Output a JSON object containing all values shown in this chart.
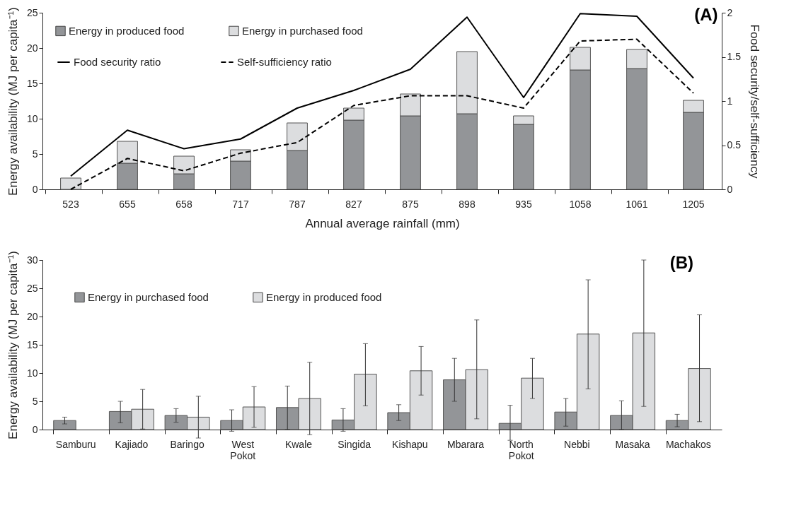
{
  "chart_data": [
    {
      "type": "bar",
      "title": "(A)",
      "stacked": true,
      "xlabel": "Annual average rainfall (mm)",
      "ylabel": "Energy availability (MJ per capita⁻¹)",
      "y2label": "Food security/self-sufficiency",
      "categories": [
        "523",
        "655",
        "658",
        "717",
        "787",
        "827",
        "875",
        "898",
        "935",
        "1058",
        "1061",
        "1205"
      ],
      "series": [
        {
          "name": "Energy in produced food",
          "color": "#939598",
          "values": [
            0,
            3.7,
            2.2,
            4.0,
            5.5,
            9.8,
            10.4,
            10.7,
            9.2,
            16.9,
            17.1,
            10.9
          ]
        },
        {
          "name": "Energy in purchased food",
          "color": "#dcdddf",
          "values": [
            1.6,
            3.1,
            2.5,
            1.6,
            3.9,
            1.7,
            3.1,
            8.8,
            1.2,
            3.2,
            2.7,
            1.7
          ]
        },
        {
          "name": "Food security ratio",
          "type": "line",
          "axis": "y2",
          "color": "#000000",
          "line_style": "solid",
          "values": [
            0.15,
            0.67,
            0.46,
            0.57,
            0.92,
            1.12,
            1.36,
            1.95,
            1.04,
            1.99,
            1.96,
            1.26
          ]
        },
        {
          "name": "Self-sufficiency ratio",
          "type": "line",
          "axis": "y2",
          "color": "#000000",
          "line_style": "dashed",
          "values": [
            0,
            0.35,
            0.21,
            0.41,
            0.53,
            0.95,
            1.06,
            1.06,
            0.92,
            1.68,
            1.7,
            1.09
          ]
        }
      ],
      "ylim": [
        0,
        25
      ],
      "yticks": [
        0,
        5,
        10,
        15,
        20,
        25
      ],
      "y2lim": [
        0,
        2
      ],
      "y2ticks": [
        0,
        0.5,
        1,
        1.5,
        2
      ],
      "legend": "top left",
      "grid": false
    },
    {
      "type": "bar",
      "title": "(B)",
      "ylabel": "Energy availability (MJ per capita⁻¹)",
      "categories": [
        "Samburu",
        "Kajiado",
        "Baringo",
        "West Pokot",
        "Kwale",
        "Singida",
        "Kishapu",
        "Mbarara",
        "North Pokot",
        "Nebbi",
        "Masaka",
        "Machakos"
      ],
      "series": [
        {
          "name": "Energy in purchased food",
          "color": "#939598",
          "values": [
            1.6,
            3.2,
            2.5,
            1.6,
            3.9,
            1.7,
            3.0,
            8.8,
            1.1,
            3.1,
            2.5,
            1.6
          ],
          "errors": [
            [
              1.0,
              2.2
            ],
            [
              1.2,
              5.0
            ],
            [
              1.3,
              3.7
            ],
            [
              -0.3,
              3.5
            ],
            [
              0,
              7.7
            ],
            [
              -0.3,
              3.7
            ],
            [
              1.6,
              4.4
            ],
            [
              5.0,
              12.6
            ],
            [
              -1.9,
              4.3
            ],
            [
              0.6,
              5.5
            ],
            [
              0,
              5.1
            ],
            [
              0.5,
              2.7
            ]
          ]
        },
        {
          "name": "Energy in produced food",
          "color": "#dcdddf",
          "values": [
            null,
            3.6,
            2.2,
            4.0,
            5.5,
            9.8,
            10.4,
            10.6,
            9.1,
            16.9,
            17.1,
            10.8
          ],
          "errors": [
            null,
            [
              0.1,
              7.1
            ],
            [
              -1.5,
              5.9
            ],
            [
              0.4,
              7.6
            ],
            [
              -0.9,
              11.9
            ],
            [
              4.2,
              15.2
            ],
            [
              6.1,
              14.7
            ],
            [
              1.9,
              19.4
            ],
            [
              5.5,
              12.6
            ],
            [
              7.2,
              26.5
            ],
            [
              4.1,
              30.0
            ],
            [
              1.4,
              20.3
            ]
          ]
        }
      ],
      "ylim": [
        0,
        30
      ],
      "yticks": [
        0,
        5,
        10,
        15,
        20,
        25,
        30
      ],
      "legend": "top left",
      "grid": false
    }
  ]
}
